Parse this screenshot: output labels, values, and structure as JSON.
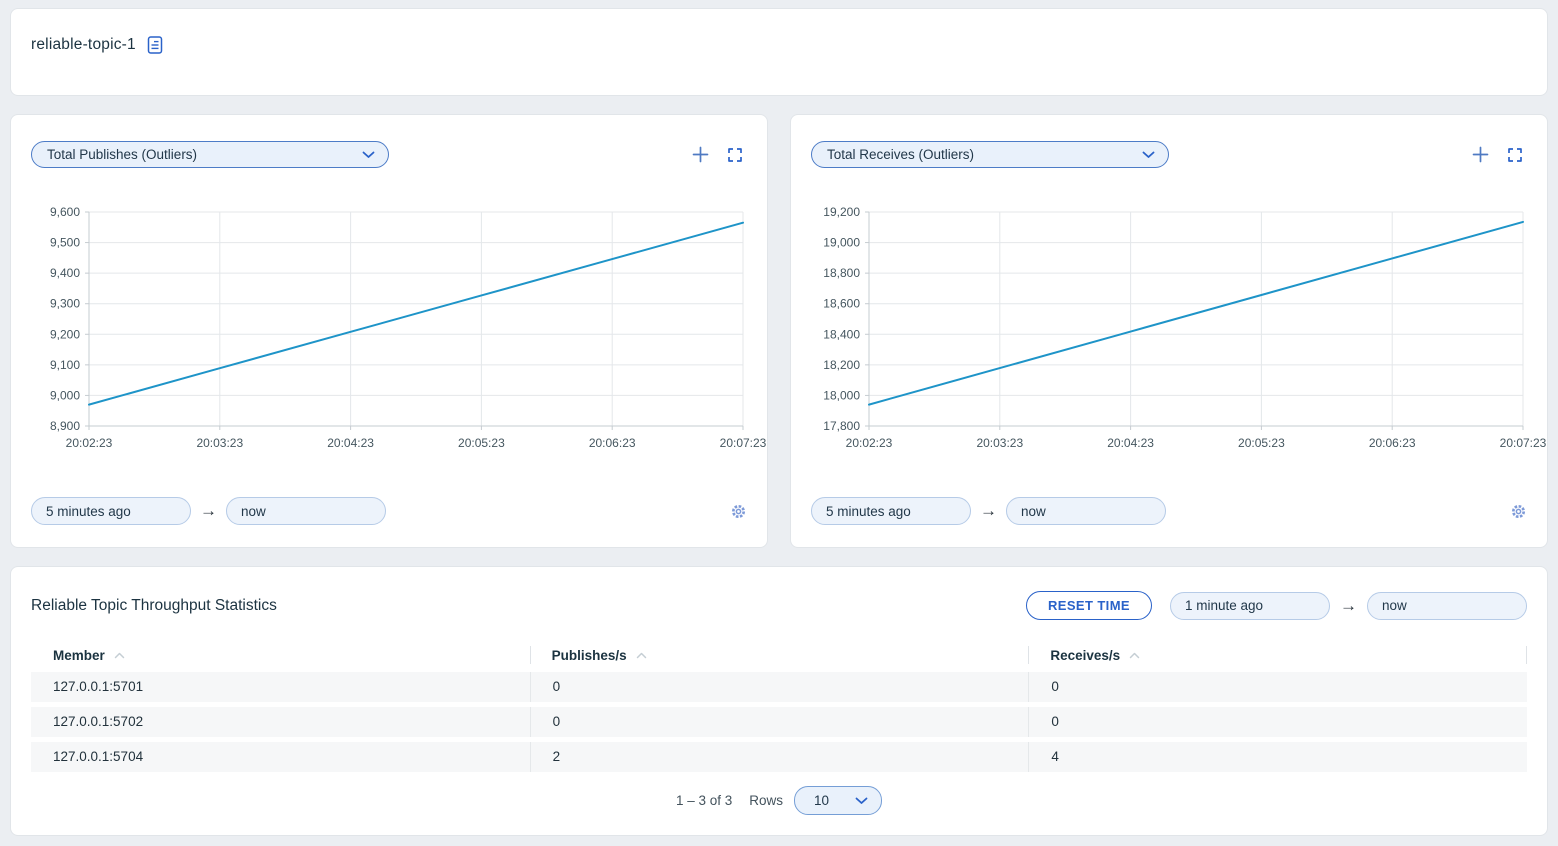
{
  "colors": {
    "accent_blue": "#2a62c9",
    "muted_blue": "#4f7ac2",
    "gear_blue": "#7d9ad8",
    "line_blue": "#1e94c8",
    "grid": "#e4e7ea",
    "axis": "#c6ccd1",
    "axis_label": "#45565f"
  },
  "header": {
    "title": "reliable-topic-1",
    "icon": "document-icon"
  },
  "charts": [
    {
      "metric_label": "Total Publishes (Outliers)",
      "from_value": "5 minutes ago",
      "to_value": "now"
    },
    {
      "metric_label": "Total Receives (Outliers)",
      "from_value": "5 minutes ago",
      "to_value": "now"
    }
  ],
  "chart_data": [
    {
      "type": "line",
      "title": "Total Publishes (Outliers)",
      "x": [
        "20:02:23",
        "20:03:23",
        "20:04:23",
        "20:05:23",
        "20:06:23",
        "20:07:23"
      ],
      "values": [
        8970,
        9089,
        9208,
        9327,
        9446,
        9565
      ],
      "ylim": [
        8900,
        9600
      ],
      "ytick_step": 100,
      "xlabel": "",
      "ylabel": "",
      "grid": true,
      "legend": "none",
      "line_color": "#1e94c8"
    },
    {
      "type": "line",
      "title": "Total Receives (Outliers)",
      "x": [
        "20:02:23",
        "20:03:23",
        "20:04:23",
        "20:05:23",
        "20:06:23",
        "20:07:23"
      ],
      "values": [
        17940,
        18179,
        18418,
        18657,
        18896,
        19135
      ],
      "ylim": [
        17800,
        19200
      ],
      "ytick_step": 200,
      "xlabel": "",
      "ylabel": "",
      "grid": true,
      "legend": "none",
      "line_color": "#1e94c8"
    }
  ],
  "stats": {
    "title": "Reliable Topic Throughput Statistics",
    "reset_button": "RESET TIME",
    "from_value": "1 minute ago",
    "to_value": "now",
    "columns": [
      "Member",
      "Publishes/s",
      "Receives/s"
    ],
    "rows": [
      [
        "127.0.0.1:5701",
        "0",
        "0"
      ],
      [
        "127.0.0.1:5702",
        "0",
        "0"
      ],
      [
        "127.0.0.1:5704",
        "2",
        "4"
      ]
    ],
    "pagination": {
      "range_label": "1 – 3 of 3",
      "rows_label": "Rows",
      "rows_per_page": "10"
    }
  },
  "icons": {
    "document": "file-outline",
    "add": "plus",
    "fullscreen": "corner-brackets",
    "settings": "gear",
    "sort": "caret-up",
    "dropdown": "chevron-down",
    "range_arrow": "→"
  }
}
